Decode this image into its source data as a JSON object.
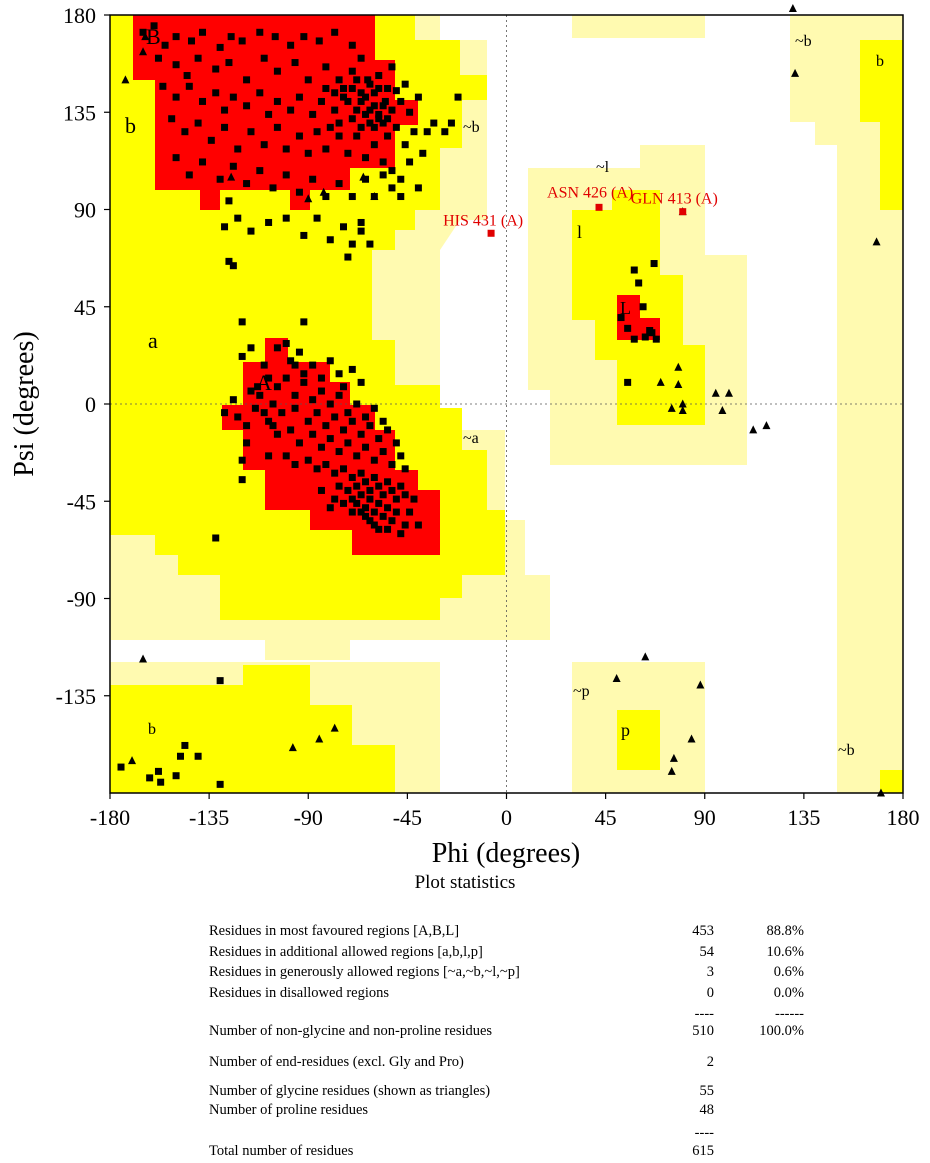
{
  "chart_data": {
    "type": "scatter",
    "xlabel": "Phi (degrees)",
    "ylabel": "Psi (degrees)",
    "xlim": [
      -180,
      180
    ],
    "ylim": [
      -180,
      180
    ],
    "xticks": [
      "-180",
      "-135",
      "-90",
      "-45",
      "0",
      "45",
      "90",
      "135",
      "180"
    ],
    "yticks": [
      "180",
      "135",
      "90",
      "45",
      "0",
      "-45",
      "-90",
      "-135"
    ],
    "colors": {
      "core": "#ff0000",
      "allowed": "#ffff00",
      "generous": "#fffab0",
      "marker": "#000000",
      "outlier": "#e00000"
    },
    "region_labels": [
      "B",
      "b",
      "a",
      "A",
      "~b",
      "~a",
      "~l",
      "l",
      "L",
      "~p",
      "p",
      "~b",
      "b",
      "b",
      "~b"
    ],
    "outliers": [
      {
        "label": "HIS 431 (A)",
        "phi": -7,
        "psi": 79
      },
      {
        "label": "ASN 426 (A)",
        "phi": 42,
        "psi": 91
      },
      {
        "label": "GLN 413 (A)",
        "phi": 80,
        "psi": 89
      }
    ],
    "glycine_points": [
      [
        -164,
        170
      ],
      [
        -165,
        163
      ],
      [
        -173,
        150
      ],
      [
        -90,
        95
      ],
      [
        -83,
        98
      ],
      [
        -65,
        105
      ],
      [
        -125,
        105
      ],
      [
        -60,
        96
      ],
      [
        -170,
        -165
      ],
      [
        -165,
        -118
      ],
      [
        -97,
        -159
      ],
      [
        -85,
        -155
      ],
      [
        -78,
        -150
      ],
      [
        80,
        89
      ],
      [
        63,
        -117
      ],
      [
        50,
        -127
      ],
      [
        88,
        -130
      ],
      [
        84,
        -155
      ],
      [
        75,
        -170
      ],
      [
        76,
        -164
      ],
      [
        78,
        17
      ],
      [
        70,
        10
      ],
      [
        78,
        9
      ],
      [
        80,
        0
      ],
      [
        75,
        -2
      ],
      [
        95,
        5
      ],
      [
        98,
        -3
      ],
      [
        101,
        5
      ],
      [
        80,
        -3
      ],
      [
        112,
        -12
      ],
      [
        118,
        -10
      ],
      [
        130,
        183
      ],
      [
        131,
        153
      ],
      [
        168,
        75
      ],
      [
        170,
        -180
      ]
    ],
    "residue_points": [
      [
        -160,
        175
      ],
      [
        -165,
        172
      ],
      [
        -155,
        166
      ],
      [
        -150,
        170
      ],
      [
        -143,
        168
      ],
      [
        -138,
        172
      ],
      [
        -130,
        165
      ],
      [
        -125,
        170
      ],
      [
        -120,
        168
      ],
      [
        -112,
        172
      ],
      [
        -105,
        170
      ],
      [
        -98,
        166
      ],
      [
        -92,
        170
      ],
      [
        -85,
        168
      ],
      [
        -78,
        172
      ],
      [
        -70,
        166
      ],
      [
        -66,
        160
      ],
      [
        -158,
        160
      ],
      [
        -150,
        157
      ],
      [
        -145,
        152
      ],
      [
        -140,
        160
      ],
      [
        -132,
        155
      ],
      [
        -126,
        158
      ],
      [
        -118,
        150
      ],
      [
        -110,
        160
      ],
      [
        -104,
        154
      ],
      [
        -96,
        158
      ],
      [
        -90,
        150
      ],
      [
        -82,
        156
      ],
      [
        -76,
        150
      ],
      [
        -70,
        154
      ],
      [
        -63,
        150
      ],
      [
        -58,
        146
      ],
      [
        -55,
        140
      ],
      [
        -52,
        136
      ],
      [
        -50,
        145
      ],
      [
        -48,
        140
      ],
      [
        -46,
        148
      ],
      [
        -44,
        135
      ],
      [
        -40,
        142
      ],
      [
        -36,
        126
      ],
      [
        -33,
        130
      ],
      [
        -28,
        126
      ],
      [
        -25,
        130
      ],
      [
        -22,
        142
      ],
      [
        -156,
        147
      ],
      [
        -150,
        142
      ],
      [
        -144,
        147
      ],
      [
        -138,
        140
      ],
      [
        -132,
        144
      ],
      [
        -128,
        136
      ],
      [
        -124,
        142
      ],
      [
        -118,
        138
      ],
      [
        -112,
        144
      ],
      [
        -108,
        134
      ],
      [
        -104,
        140
      ],
      [
        -98,
        136
      ],
      [
        -94,
        142
      ],
      [
        -88,
        134
      ],
      [
        -84,
        140
      ],
      [
        -78,
        136
      ],
      [
        -74,
        142
      ],
      [
        -70,
        132
      ],
      [
        -66,
        140
      ],
      [
        -62,
        136
      ],
      [
        -60,
        128
      ],
      [
        -58,
        132
      ],
      [
        -54,
        124
      ],
      [
        -50,
        128
      ],
      [
        -46,
        120
      ],
      [
        -42,
        126
      ],
      [
        -38,
        116
      ],
      [
        -152,
        132
      ],
      [
        -146,
        126
      ],
      [
        -140,
        130
      ],
      [
        -134,
        122
      ],
      [
        -128,
        128
      ],
      [
        -122,
        118
      ],
      [
        -116,
        126
      ],
      [
        -110,
        120
      ],
      [
        -104,
        128
      ],
      [
        -100,
        118
      ],
      [
        -94,
        124
      ],
      [
        -90,
        116
      ],
      [
        -86,
        126
      ],
      [
        -82,
        118
      ],
      [
        -76,
        124
      ],
      [
        -72,
        116
      ],
      [
        -68,
        124
      ],
      [
        -64,
        114
      ],
      [
        -60,
        120
      ],
      [
        -56,
        112
      ],
      [
        -52,
        108
      ],
      [
        -48,
        104
      ],
      [
        -44,
        112
      ],
      [
        -40,
        100
      ],
      [
        -150,
        114
      ],
      [
        -144,
        106
      ],
      [
        -138,
        112
      ],
      [
        -130,
        104
      ],
      [
        -124,
        110
      ],
      [
        -118,
        102
      ],
      [
        -112,
        108
      ],
      [
        -106,
        100
      ],
      [
        -100,
        106
      ],
      [
        -94,
        98
      ],
      [
        -88,
        104
      ],
      [
        -82,
        96
      ],
      [
        -76,
        102
      ],
      [
        -70,
        96
      ],
      [
        -64,
        104
      ],
      [
        -60,
        96
      ],
      [
        -56,
        106
      ],
      [
        -52,
        100
      ],
      [
        -48,
        96
      ],
      [
        -126,
        94
      ],
      [
        -122,
        86
      ],
      [
        -116,
        80
      ],
      [
        -108,
        84
      ],
      [
        -100,
        86
      ],
      [
        -92,
        78
      ],
      [
        -86,
        86
      ],
      [
        -80,
        76
      ],
      [
        -74,
        82
      ],
      [
        -70,
        74
      ],
      [
        -66,
        80
      ],
      [
        -62,
        74
      ],
      [
        -66,
        84
      ],
      [
        -72,
        68
      ],
      [
        -124,
        64
      ],
      [
        -126,
        66
      ],
      [
        -128,
        82
      ],
      [
        -70,
        146
      ],
      [
        -68,
        150
      ],
      [
        -66,
        144
      ],
      [
        -64,
        142
      ],
      [
        -62,
        148
      ],
      [
        -60,
        144
      ],
      [
        -58,
        152
      ],
      [
        -56,
        138
      ],
      [
        -54,
        146
      ],
      [
        -52,
        156
      ],
      [
        -64,
        134
      ],
      [
        -62,
        130
      ],
      [
        -60,
        138
      ],
      [
        -58,
        134
      ],
      [
        -56,
        130
      ],
      [
        -54,
        132
      ],
      [
        -66,
        128
      ],
      [
        -68,
        136
      ],
      [
        -72,
        140
      ],
      [
        -74,
        146
      ],
      [
        -76,
        130
      ],
      [
        -78,
        144
      ],
      [
        -80,
        128
      ],
      [
        -82,
        146
      ],
      [
        -120,
        22
      ],
      [
        -116,
        26
      ],
      [
        -110,
        18
      ],
      [
        -108,
        12
      ],
      [
        -104,
        8
      ],
      [
        -100,
        12
      ],
      [
        -96,
        4
      ],
      [
        -92,
        10
      ],
      [
        -88,
        2
      ],
      [
        -84,
        6
      ],
      [
        -80,
        0
      ],
      [
        -76,
        4
      ],
      [
        -72,
        -4
      ],
      [
        -68,
        0
      ],
      [
        -64,
        -6
      ],
      [
        -60,
        -2
      ],
      [
        -56,
        -8
      ],
      [
        -112,
        4
      ],
      [
        -106,
        0
      ],
      [
        -102,
        -4
      ],
      [
        -96,
        -2
      ],
      [
        -90,
        -8
      ],
      [
        -86,
        -4
      ],
      [
        -82,
        -10
      ],
      [
        -78,
        -6
      ],
      [
        -74,
        -12
      ],
      [
        -70,
        -8
      ],
      [
        -66,
        -14
      ],
      [
        -62,
        -10
      ],
      [
        -58,
        -16
      ],
      [
        -54,
        -12
      ],
      [
        -50,
        -18
      ],
      [
        -128,
        -4
      ],
      [
        -122,
        -6
      ],
      [
        -118,
        -10
      ],
      [
        -114,
        -2
      ],
      [
        -108,
        -8
      ],
      [
        -104,
        -14
      ],
      [
        -98,
        -12
      ],
      [
        -94,
        -18
      ],
      [
        -88,
        -14
      ],
      [
        -84,
        -20
      ],
      [
        -80,
        -16
      ],
      [
        -76,
        -22
      ],
      [
        -72,
        -18
      ],
      [
        -68,
        -24
      ],
      [
        -64,
        -20
      ],
      [
        -60,
        -26
      ],
      [
        -56,
        -22
      ],
      [
        -52,
        -28
      ],
      [
        -48,
        -24
      ],
      [
        -46,
        -30
      ],
      [
        -100,
        -24
      ],
      [
        -96,
        -28
      ],
      [
        -90,
        -26
      ],
      [
        -86,
        -30
      ],
      [
        -82,
        -28
      ],
      [
        -78,
        -32
      ],
      [
        -74,
        -30
      ],
      [
        -70,
        -34
      ],
      [
        -68,
        -38
      ],
      [
        -66,
        -32
      ],
      [
        -64,
        -36
      ],
      [
        -62,
        -40
      ],
      [
        -60,
        -34
      ],
      [
        -58,
        -38
      ],
      [
        -56,
        -42
      ],
      [
        -54,
        -36
      ],
      [
        -52,
        -40
      ],
      [
        -50,
        -44
      ],
      [
        -48,
        -38
      ],
      [
        -46,
        -42
      ],
      [
        -72,
        -40
      ],
      [
        -70,
        -44
      ],
      [
        -68,
        -46
      ],
      [
        -66,
        -42
      ],
      [
        -64,
        -48
      ],
      [
        -62,
        -44
      ],
      [
        -60,
        -50
      ],
      [
        -58,
        -46
      ],
      [
        -56,
        -52
      ],
      [
        -54,
        -48
      ],
      [
        -52,
        -54
      ],
      [
        -50,
        -50
      ],
      [
        -62,
        -54
      ],
      [
        -60,
        -56
      ],
      [
        -58,
        -58
      ],
      [
        -64,
        -52
      ],
      [
        -66,
        -50
      ],
      [
        -76,
        -38
      ],
      [
        -78,
        -44
      ],
      [
        -74,
        -46
      ],
      [
        -70,
        -50
      ],
      [
        -84,
        -40
      ],
      [
        -80,
        -48
      ],
      [
        -44,
        -50
      ],
      [
        -42,
        -44
      ],
      [
        -40,
        -56
      ],
      [
        -46,
        -56
      ],
      [
        -54,
        -58
      ],
      [
        -48,
        -60
      ],
      [
        -98,
        20
      ],
      [
        -94,
        24
      ],
      [
        -92,
        14
      ],
      [
        -88,
        18
      ],
      [
        -84,
        12
      ],
      [
        -80,
        20
      ],
      [
        -76,
        14
      ],
      [
        -74,
        8
      ],
      [
        -70,
        16
      ],
      [
        -66,
        10
      ],
      [
        -104,
        26
      ],
      [
        -100,
        28
      ],
      [
        -96,
        18
      ],
      [
        -113,
        8
      ],
      [
        -110,
        -4
      ],
      [
        -106,
        -10
      ],
      [
        -118,
        -18
      ],
      [
        -116,
        6
      ],
      [
        -124,
        2
      ],
      [
        -120,
        -26
      ],
      [
        -108,
        -24
      ],
      [
        -92,
        38
      ],
      [
        -120,
        38
      ],
      [
        -132,
        -62
      ],
      [
        -130,
        -128
      ],
      [
        -120,
        -35
      ],
      [
        -175,
        -168
      ],
      [
        -162,
        -173
      ],
      [
        -158,
        -170
      ],
      [
        -157,
        -175
      ],
      [
        -150,
        -172
      ],
      [
        -148,
        -163
      ],
      [
        -146,
        -158
      ],
      [
        -140,
        -163
      ],
      [
        -130,
        -176
      ],
      [
        52,
        40
      ],
      [
        55,
        35
      ],
      [
        58,
        30
      ],
      [
        63,
        31
      ],
      [
        65,
        34
      ],
      [
        68,
        30
      ],
      [
        66,
        33
      ],
      [
        58,
        62
      ],
      [
        60,
        56
      ],
      [
        67,
        65
      ],
      [
        55,
        10
      ],
      [
        62,
        45
      ]
    ]
  },
  "stats": {
    "title": "Plot statistics",
    "rows": [
      {
        "label": "Residues in most favoured regions  [A,B,L]",
        "count": "453",
        "percent": "88.8%"
      },
      {
        "label": "Residues in additional allowed regions  [a,b,l,p]",
        "count": "54",
        "percent": "10.6%"
      },
      {
        "label": "Residues in generously allowed regions  [~a,~b,~l,~p]",
        "count": "3",
        "percent": "0.6%"
      },
      {
        "label": "Residues in disallowed regions",
        "count": "0",
        "percent": "0.0%"
      },
      {
        "label": "",
        "count": "----",
        "percent": "------"
      },
      {
        "label": "Number of non-glycine and non-proline residues",
        "count": "510",
        "percent": "100.0%"
      },
      {
        "label": "Number of end-residues (excl. Gly and Pro)",
        "count": "2",
        "percent": ""
      },
      {
        "label": "Number of glycine residues (shown as triangles)",
        "count": "55",
        "percent": ""
      },
      {
        "label": "Number of proline residues",
        "count": "48",
        "percent": ""
      },
      {
        "label": "",
        "count": "----",
        "percent": ""
      },
      {
        "label": "Total number of residues",
        "count": "615",
        "percent": ""
      }
    ]
  }
}
